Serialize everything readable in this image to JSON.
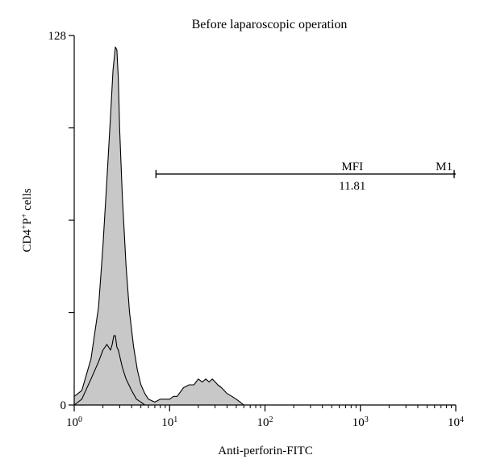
{
  "chart_data": {
    "type": "area",
    "title": "Before laparoscopic operation",
    "xlabel": "Anti-perforin-FITC",
    "ylabel_main": "CD4",
    "ylabel_sup1": "+",
    "ylabel_mid": "P",
    "ylabel_sup2": "+",
    "ylabel_end": " cells",
    "x_scale": "log",
    "xlim": [
      1,
      10000
    ],
    "ylim": [
      0,
      128
    ],
    "x_ticks": [
      {
        "value": 1,
        "base": "10",
        "exp": "0"
      },
      {
        "value": 10,
        "base": "10",
        "exp": "1"
      },
      {
        "value": 100,
        "base": "10",
        "exp": "2"
      },
      {
        "value": 1000,
        "base": "10",
        "exp": "3"
      },
      {
        "value": 10000,
        "base": "10",
        "exp": "4"
      }
    ],
    "y_tick_labels": [
      {
        "value": 0,
        "label": "0"
      },
      {
        "value": 128,
        "label": "128"
      }
    ],
    "y_minor_ticks": [
      32,
      64,
      96
    ],
    "grid": false,
    "gate": {
      "name": "M1",
      "stat_label": "MFI",
      "stat_value": "11.81",
      "x_range": [
        7.2,
        10000
      ],
      "y": 80
    },
    "series": [
      {
        "fill": "#c8c8c8",
        "x": [
          1.0,
          1.2,
          1.5,
          1.8,
          2.0,
          2.2,
          2.4,
          2.55,
          2.7,
          2.8,
          2.9,
          3.0,
          3.2,
          3.5,
          3.8,
          4.2,
          4.6,
          5.0,
          5.5,
          6.0,
          7.0,
          8.0,
          9.0,
          10.0,
          11.0,
          12.0,
          14.0,
          16.0,
          18.0,
          20.0,
          22.0,
          24.0,
          26.0,
          28.0,
          30.0,
          32.0,
          35.0,
          40.0,
          45.0,
          50.0,
          55.0,
          60.0
        ],
        "values": [
          3,
          5,
          16,
          34,
          55,
          78,
          100,
          116,
          124,
          123,
          113,
          95,
          72,
          48,
          32,
          20,
          12,
          7,
          4,
          2,
          1,
          2,
          2,
          2,
          3,
          3,
          6,
          7,
          7,
          9,
          8,
          9,
          8,
          9,
          8,
          7,
          6,
          4,
          3,
          2,
          1,
          0
        ]
      },
      {
        "fill": "none",
        "x": [
          1.0,
          1.2,
          1.5,
          1.8,
          2.0,
          2.2,
          2.4,
          2.5,
          2.6,
          2.7,
          2.8,
          2.9,
          3.0,
          3.2,
          3.5,
          4.0,
          4.5,
          5.0,
          5.5
        ],
        "values": [
          0,
          2,
          9,
          15,
          19,
          21,
          19,
          21,
          24,
          24,
          20,
          19,
          17,
          13,
          9,
          5,
          2,
          1,
          0
        ]
      }
    ]
  }
}
